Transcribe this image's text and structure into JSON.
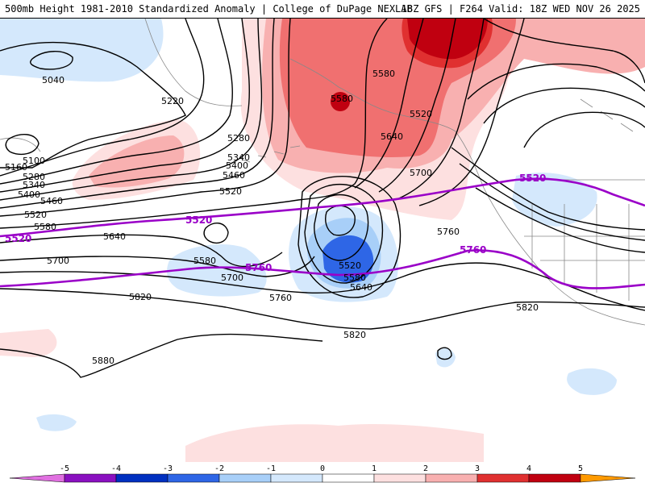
{
  "header": {
    "title": "500mb Height 1981-2010 Standardized Anomaly | College of DuPage NEXLAB",
    "run_info": "18Z GFS | F264 Valid: 18Z WED NOV 26 2025"
  },
  "colors": {
    "m5": "#e070e0",
    "m4": "#8a10c0",
    "m3": "#0030c0",
    "m2": "#2e66e6",
    "m1": "#a8cff8",
    "m0": "#d4e8fc",
    "p0": "#fde0e0",
    "p1": "#f8b0b0",
    "p2": "#f07070",
    "p3": "#e03030",
    "p4": "#c00010",
    "p5": "#ff9a00",
    "contour": "#000000",
    "special": "#9a00c8"
  },
  "colorbar": {
    "labels": [
      "-5",
      "-4",
      "-3",
      "-2",
      "-1",
      "0",
      "1",
      "2",
      "3",
      "4",
      "5"
    ]
  },
  "contour_labels": [
    "5040",
    "5100",
    "5160",
    "5220",
    "5280",
    "5280",
    "5340",
    "5340",
    "5400",
    "5400",
    "5460",
    "5460",
    "5520",
    "5520",
    "5520",
    "5580",
    "5580",
    "5580",
    "5580",
    "5640",
    "5640",
    "5640",
    "5700",
    "5700",
    "5700",
    "5760",
    "5760",
    "5820",
    "5820",
    "5820",
    "5880",
    "5520",
    "5580"
  ],
  "special_labels": [
    "5520",
    "5520",
    "5520",
    "5760",
    "5760"
  ]
}
